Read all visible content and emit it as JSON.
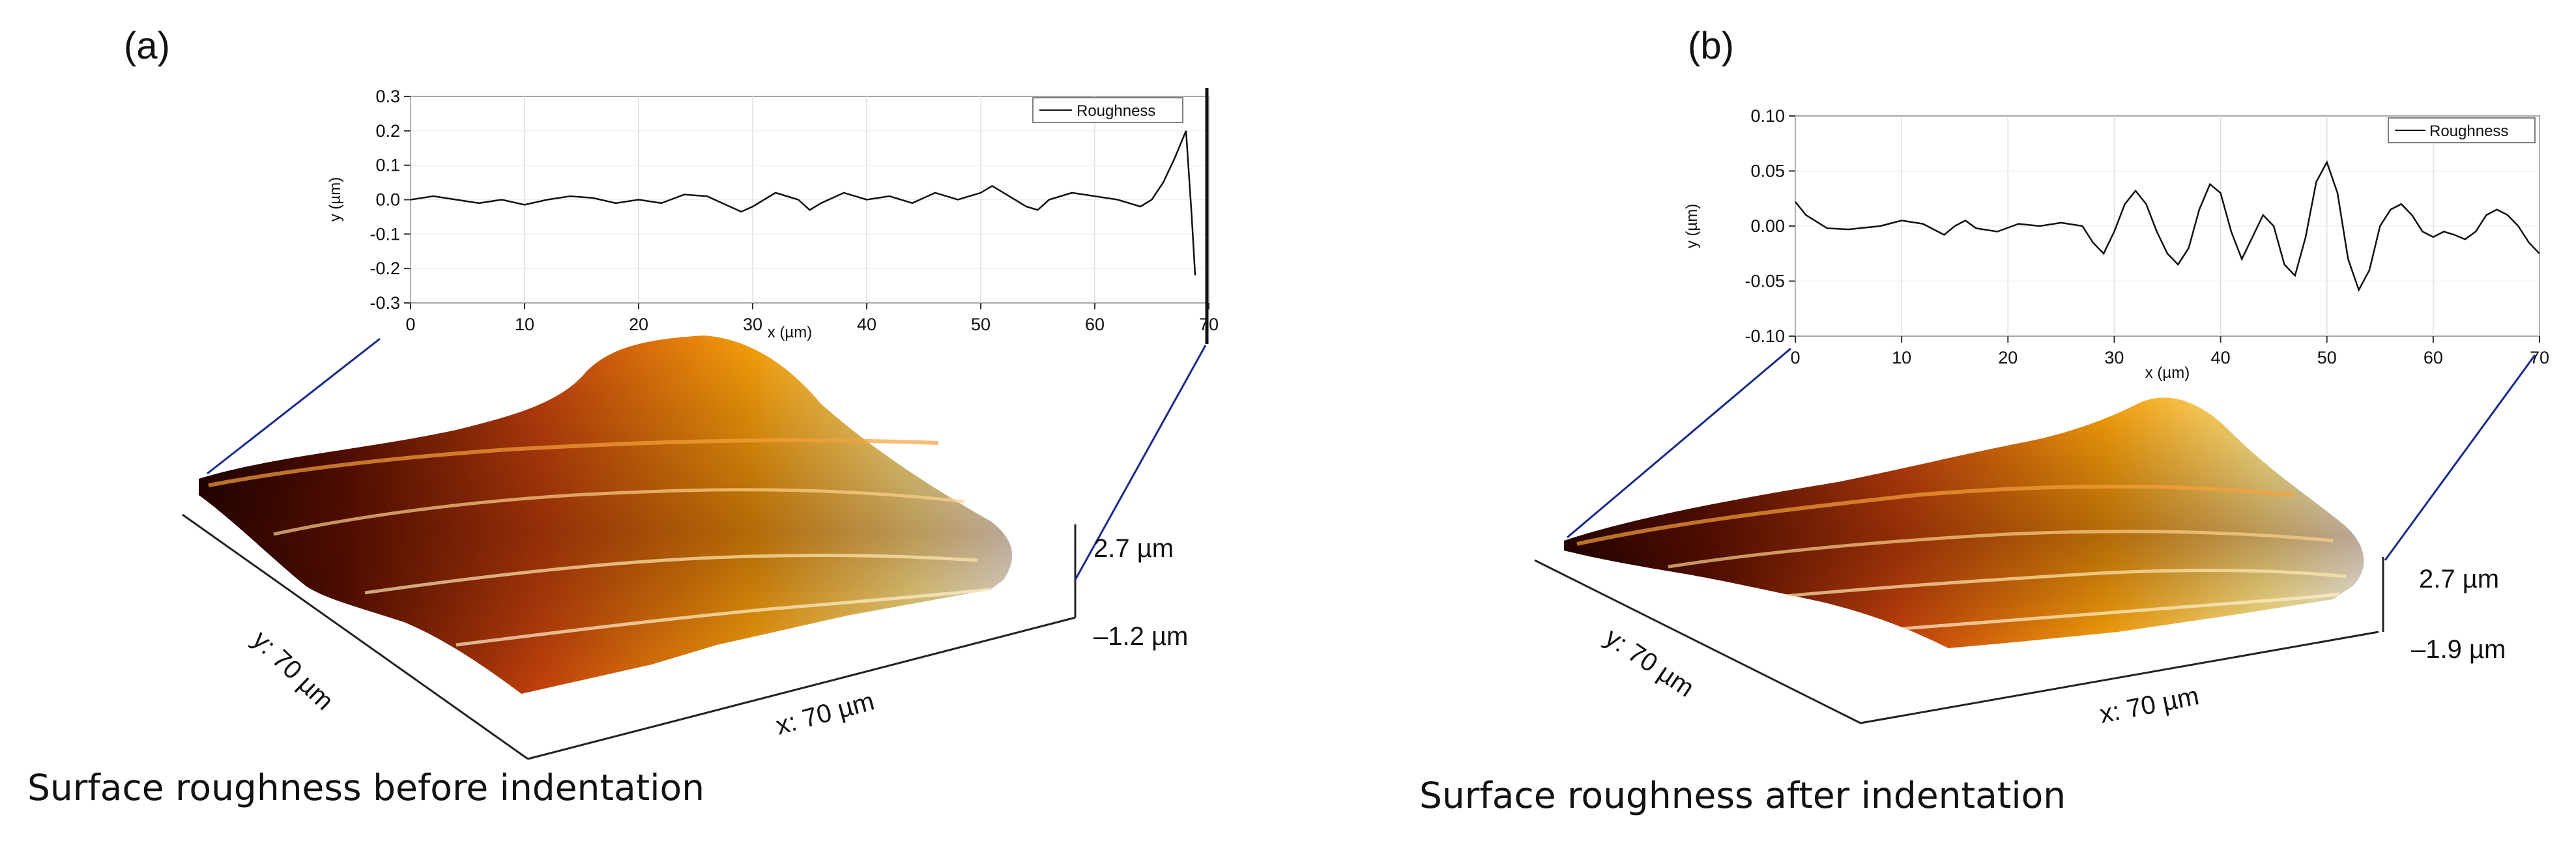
{
  "panels": [
    {
      "label": "(a)",
      "caption": "Surface roughness before indentation",
      "surface": {
        "y_label": "y: 70 µm",
        "x_label": "x: 70 µm",
        "z_top": "2.7 µm",
        "z_bottom": "–1.2 µm"
      }
    },
    {
      "label": "(b)",
      "caption": "Surface roughness after indentation",
      "surface": {
        "y_label": "y: 70 µm",
        "x_label": "x: 70 µm",
        "z_top": "2.7 µm",
        "z_bottom": "–1.9 µm"
      }
    }
  ],
  "colors": {
    "line": "#111111",
    "profile_guide": "#1a2a8a"
  },
  "chart_data": [
    {
      "type": "line",
      "xlabel": "x (µm)",
      "ylabel": "y (µm)",
      "xlim": [
        0,
        70
      ],
      "ylim": [
        -0.3,
        0.3
      ],
      "x_ticks": [
        "0",
        "10",
        "20",
        "30",
        "40",
        "50",
        "60",
        "70"
      ],
      "y_ticks": [
        "0.3",
        "0.2",
        "0.1",
        "0.0",
        "-0.1",
        "-0.2",
        "-0.3"
      ],
      "grid": true,
      "legend": "top-right",
      "series": [
        {
          "name": "Roughness",
          "points": [
            [
              0,
              0.0
            ],
            [
              2,
              0.01
            ],
            [
              4,
              0.0
            ],
            [
              6,
              -0.01
            ],
            [
              8,
              0.0
            ],
            [
              10,
              -0.015
            ],
            [
              12,
              0.0
            ],
            [
              14,
              0.01
            ],
            [
              16,
              0.005
            ],
            [
              18,
              -0.01
            ],
            [
              20,
              0.0
            ],
            [
              22,
              -0.01
            ],
            [
              24,
              0.015
            ],
            [
              26,
              0.01
            ],
            [
              28,
              -0.02
            ],
            [
              29,
              -0.035
            ],
            [
              30,
              -0.02
            ],
            [
              32,
              0.02
            ],
            [
              34,
              0.0
            ],
            [
              35,
              -0.03
            ],
            [
              36,
              -0.01
            ],
            [
              38,
              0.02
            ],
            [
              40,
              0.0
            ],
            [
              42,
              0.01
            ],
            [
              44,
              -0.01
            ],
            [
              46,
              0.02
            ],
            [
              48,
              0.0
            ],
            [
              50,
              0.02
            ],
            [
              51,
              0.04
            ],
            [
              52,
              0.02
            ],
            [
              54,
              -0.02
            ],
            [
              55,
              -0.03
            ],
            [
              56,
              0.0
            ],
            [
              58,
              0.02
            ],
            [
              60,
              0.01
            ],
            [
              62,
              0.0
            ],
            [
              64,
              -0.02
            ],
            [
              65,
              0.0
            ],
            [
              66,
              0.05
            ],
            [
              67,
              0.12
            ],
            [
              68,
              0.2
            ],
            [
              68.5,
              -0.05
            ],
            [
              68.8,
              -0.22
            ]
          ]
        }
      ]
    },
    {
      "type": "line",
      "xlabel": "x (µm)",
      "ylabel": "y (µm)",
      "xlim": [
        0,
        70
      ],
      "ylim": [
        -0.1,
        0.1
      ],
      "x_ticks": [
        "0",
        "10",
        "20",
        "30",
        "40",
        "50",
        "60",
        "70"
      ],
      "y_ticks": [
        "0.10",
        "0.05",
        "0.00",
        "-0.05",
        "-0.10"
      ],
      "grid": true,
      "legend": "top-right",
      "series": [
        {
          "name": "Roughness",
          "points": [
            [
              0,
              0.022
            ],
            [
              1,
              0.01
            ],
            [
              3,
              -0.002
            ],
            [
              5,
              -0.003
            ],
            [
              8,
              0.0
            ],
            [
              10,
              0.005
            ],
            [
              12,
              0.002
            ],
            [
              14,
              -0.008
            ],
            [
              15,
              0.0
            ],
            [
              16,
              0.005
            ],
            [
              17,
              -0.002
            ],
            [
              19,
              -0.005
            ],
            [
              21,
              0.002
            ],
            [
              23,
              0.0
            ],
            [
              25,
              0.003
            ],
            [
              27,
              0.0
            ],
            [
              28,
              -0.015
            ],
            [
              29,
              -0.025
            ],
            [
              30,
              -0.005
            ],
            [
              31,
              0.02
            ],
            [
              32,
              0.032
            ],
            [
              33,
              0.02
            ],
            [
              34,
              -0.005
            ],
            [
              35,
              -0.025
            ],
            [
              36,
              -0.035
            ],
            [
              37,
              -0.02
            ],
            [
              38,
              0.015
            ],
            [
              39,
              0.038
            ],
            [
              40,
              0.03
            ],
            [
              41,
              -0.005
            ],
            [
              42,
              -0.03
            ],
            [
              43,
              -0.01
            ],
            [
              44,
              0.01
            ],
            [
              45,
              0.0
            ],
            [
              46,
              -0.035
            ],
            [
              47,
              -0.045
            ],
            [
              48,
              -0.01
            ],
            [
              49,
              0.04
            ],
            [
              50,
              0.058
            ],
            [
              51,
              0.03
            ],
            [
              52,
              -0.03
            ],
            [
              53,
              -0.058
            ],
            [
              54,
              -0.04
            ],
            [
              55,
              0.0
            ],
            [
              56,
              0.015
            ],
            [
              57,
              0.02
            ],
            [
              58,
              0.01
            ],
            [
              59,
              -0.005
            ],
            [
              60,
              -0.01
            ],
            [
              61,
              -0.005
            ],
            [
              62,
              -0.008
            ],
            [
              63,
              -0.012
            ],
            [
              64,
              -0.005
            ],
            [
              65,
              0.01
            ],
            [
              66,
              0.015
            ],
            [
              67,
              0.01
            ],
            [
              68,
              0.0
            ],
            [
              69,
              -0.015
            ],
            [
              70,
              -0.025
            ]
          ]
        }
      ]
    }
  ]
}
